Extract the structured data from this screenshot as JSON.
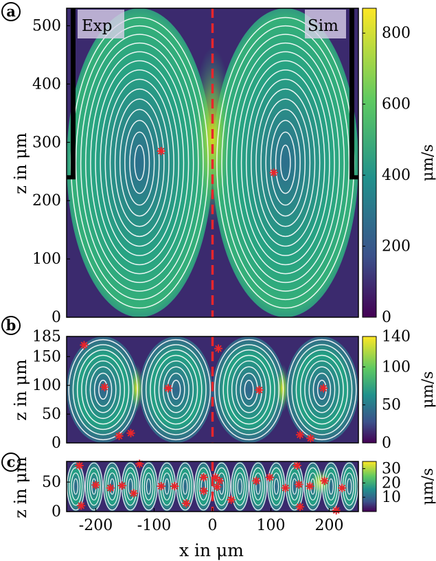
{
  "chart_data": [
    {
      "panel_label": "a",
      "type": "heatmap",
      "overlay_labels": {
        "left": "Exp",
        "right": "Sim"
      },
      "ylabel": "z in μm",
      "yticks": [
        "0",
        "100",
        "200",
        "300",
        "400",
        "500"
      ],
      "xlim": [
        -250,
        250
      ],
      "ylim": [
        0,
        530
      ],
      "colorbar": {
        "label": "μm/s",
        "range": [
          0,
          870
        ],
        "ticks": [
          "0",
          "200",
          "400",
          "600",
          "800"
        ]
      },
      "vortex_centers": [
        {
          "x": -88,
          "y": 285
        },
        {
          "x": 105,
          "y": 248
        }
      ],
      "bright_region": {
        "x": 0,
        "y": 310
      },
      "split_line": {
        "x": 0
      }
    },
    {
      "panel_label": "b",
      "type": "heatmap",
      "ylabel": "z in μm",
      "yticks": [
        "0",
        "50",
        "100",
        "150",
        "185"
      ],
      "xlim": [
        -250,
        250
      ],
      "ylim": [
        0,
        185
      ],
      "colorbar": {
        "label": "μm/s",
        "range": [
          0,
          140
        ],
        "ticks": [
          "0",
          "50",
          "100",
          "140"
        ]
      },
      "vortex_centers": [
        {
          "x": -185,
          "y": 97
        },
        {
          "x": -76,
          "y": 95
        },
        {
          "x": 80,
          "y": 92
        },
        {
          "x": 190,
          "y": 95
        },
        {
          "x": -220,
          "y": 170
        },
        {
          "x": 10,
          "y": 164
        },
        {
          "x": -160,
          "y": 12
        },
        {
          "x": -140,
          "y": 17
        },
        {
          "x": 150,
          "y": 14
        },
        {
          "x": 168,
          "y": 8
        }
      ],
      "split_line": {
        "x": 0
      }
    },
    {
      "panel_label": "c",
      "type": "heatmap",
      "ylabel": "z in μm",
      "xlabel": "x in μm",
      "xticks": [
        "-200",
        "-100",
        "0",
        "100",
        "200"
      ],
      "yticks": [
        "0",
        "50"
      ],
      "xlim": [
        -250,
        250
      ],
      "ylim": [
        0,
        85
      ],
      "colorbar": {
        "label": "μm/s",
        "range": [
          0,
          35
        ],
        "ticks": [
          "10",
          "20",
          "30"
        ]
      },
      "vortex_centers": [
        {
          "x": -228,
          "y": 78
        },
        {
          "x": -225,
          "y": 10
        },
        {
          "x": -200,
          "y": 45
        },
        {
          "x": -175,
          "y": 40
        },
        {
          "x": -155,
          "y": 44
        },
        {
          "x": -135,
          "y": 31
        },
        {
          "x": -125,
          "y": 81
        },
        {
          "x": -88,
          "y": 43
        },
        {
          "x": -65,
          "y": 43
        },
        {
          "x": -45,
          "y": 14
        },
        {
          "x": -15,
          "y": 58
        },
        {
          "x": -15,
          "y": 35
        },
        {
          "x": 5,
          "y": 58
        },
        {
          "x": 8,
          "y": 42
        },
        {
          "x": 12,
          "y": 52
        },
        {
          "x": 32,
          "y": 20
        },
        {
          "x": 75,
          "y": 52
        },
        {
          "x": 98,
          "y": 58
        },
        {
          "x": 125,
          "y": 40
        },
        {
          "x": 145,
          "y": 78
        },
        {
          "x": 148,
          "y": 46
        },
        {
          "x": 150,
          "y": 8
        },
        {
          "x": 167,
          "y": 43
        },
        {
          "x": 192,
          "y": 52
        },
        {
          "x": 212,
          "y": 2
        },
        {
          "x": 222,
          "y": 40
        }
      ],
      "bright_region": {
        "x": 185,
        "y": 50
      },
      "split_line": {
        "x": 0
      }
    }
  ]
}
